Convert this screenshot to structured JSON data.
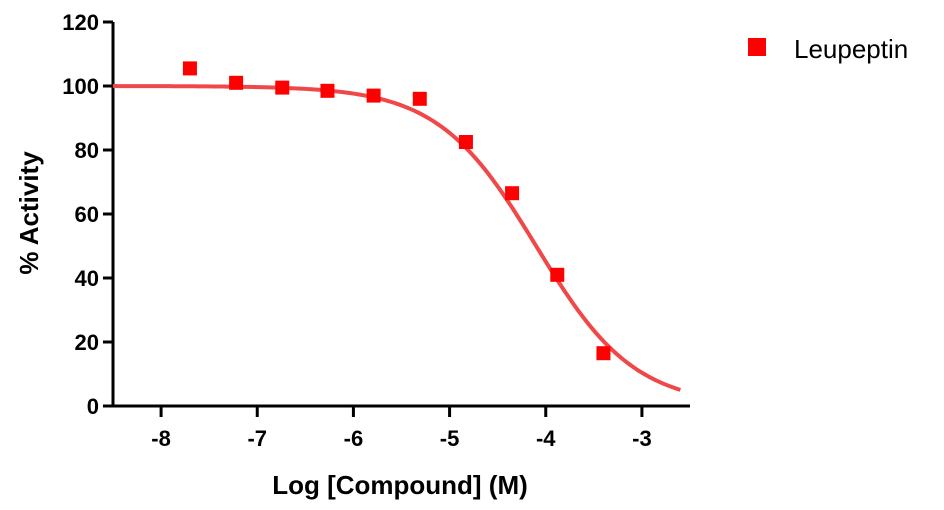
{
  "chart_data": {
    "type": "scatter",
    "xlabel": "Log [Compound] (M)",
    "ylabel": "% Activity",
    "xlim": [
      -8.5,
      -2.5
    ],
    "ylim": [
      0,
      120
    ],
    "x_ticks": [
      -8,
      -7,
      -6,
      -5,
      -4,
      -3
    ],
    "y_ticks": [
      0,
      20,
      40,
      60,
      80,
      100,
      120
    ],
    "x_tick_labels": [
      "-8",
      "-7",
      "-6",
      "-5",
      "-4",
      "-3"
    ],
    "y_tick_labels": [
      "0",
      "20",
      "40",
      "60",
      "80",
      "100",
      "120"
    ],
    "legend_position": "top-right",
    "series": [
      {
        "name": "Leupeptin",
        "color": "#ff0000",
        "curve_color": "#f04848",
        "marker": "square",
        "x": [
          -7.7,
          -7.22,
          -6.74,
          -6.27,
          -5.79,
          -5.31,
          -4.83,
          -4.35,
          -3.88,
          -3.4
        ],
        "y": [
          105.5,
          101,
          99.5,
          98.5,
          97,
          96,
          82.5,
          66.5,
          41,
          16.5
        ],
        "fit": {
          "model": "sigmoidal dose-response",
          "top": 100,
          "bottom": 0,
          "logIC50": -4.1,
          "hill_slope": -0.85,
          "x_range": [
            -8.5,
            -2.6
          ]
        }
      }
    ]
  }
}
